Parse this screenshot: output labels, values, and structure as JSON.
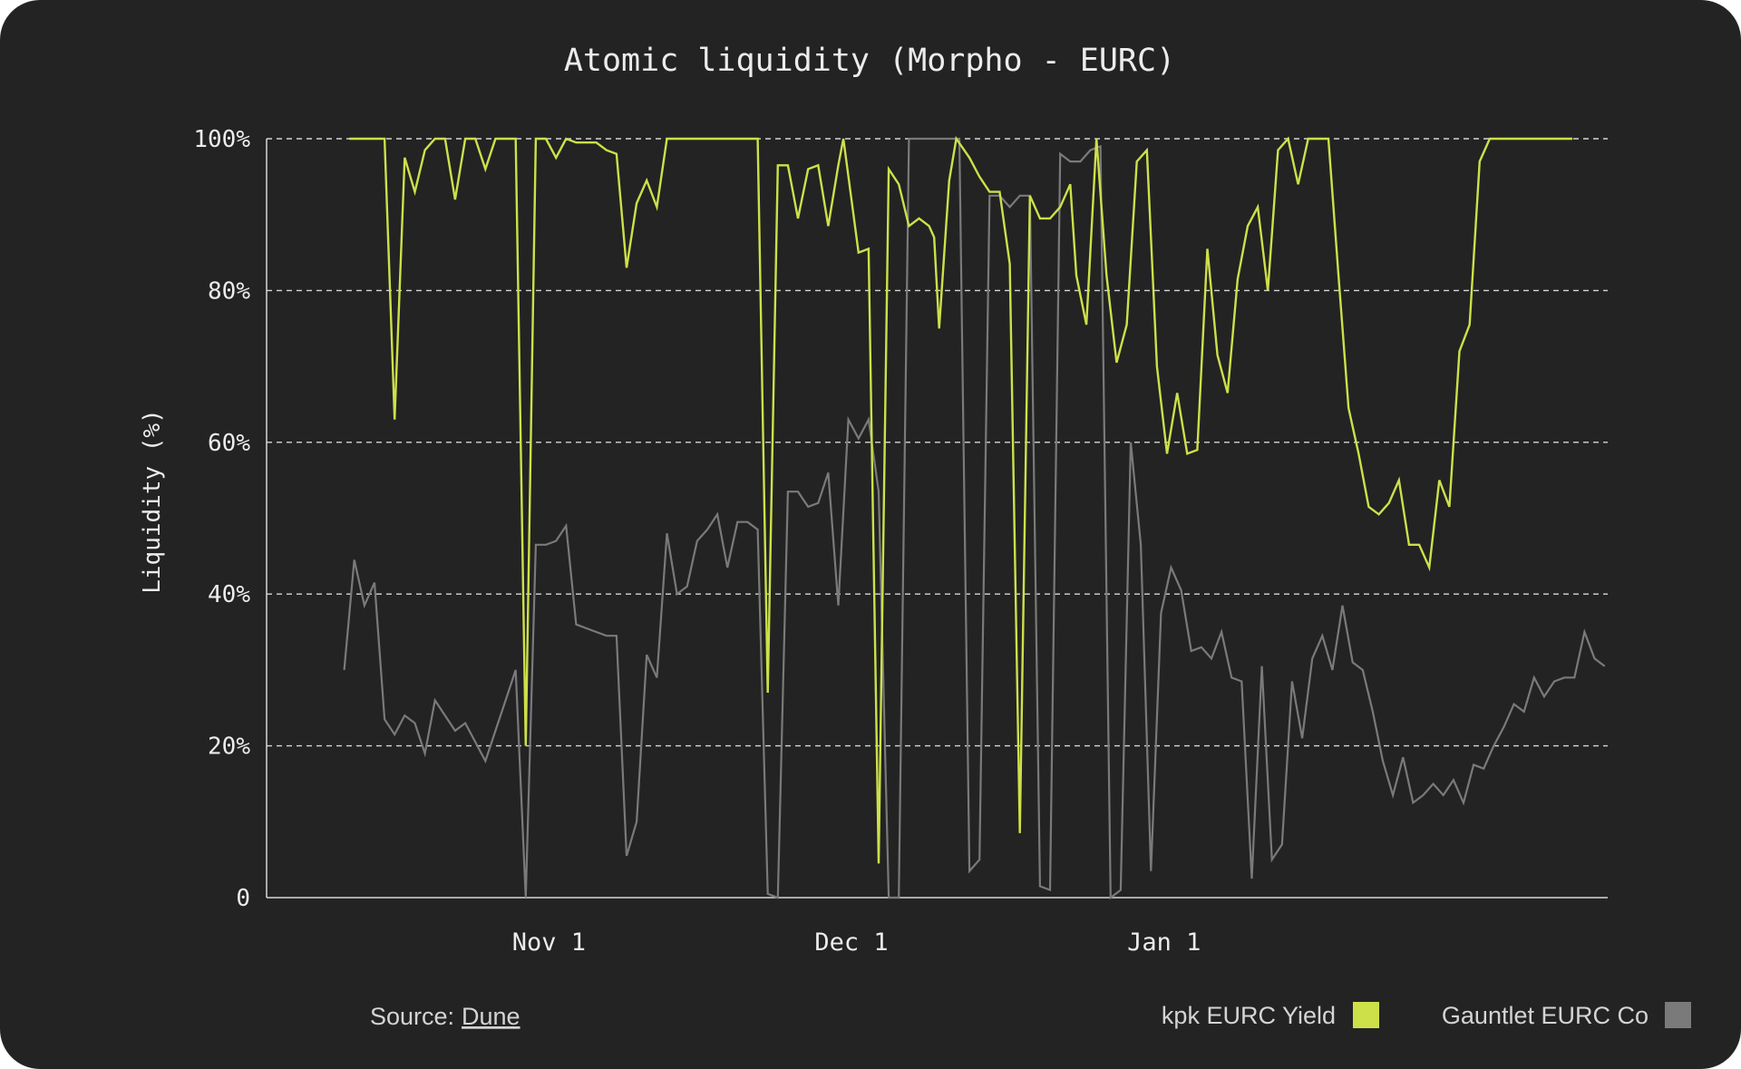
{
  "chart_data": {
    "type": "line",
    "title": "Atomic liquidity (Morpho - EURC)",
    "xlabel": "",
    "ylabel": "Liquidity (%)",
    "ylim": [
      0,
      100
    ],
    "y_ticks": [
      {
        "value": 0,
        "label": "0"
      },
      {
        "value": 20,
        "label": "20%"
      },
      {
        "value": 40,
        "label": "40%"
      },
      {
        "value": 60,
        "label": "60%"
      },
      {
        "value": 80,
        "label": "80%"
      },
      {
        "value": 100,
        "label": "100%"
      }
    ],
    "x_range": [
      -28,
      105
    ],
    "x_unit": "days since Nov 1",
    "x_ticks": [
      {
        "value": 0,
        "label": "Nov 1"
      },
      {
        "value": 30,
        "label": "Dec 1"
      },
      {
        "value": 61,
        "label": "Jan 1"
      }
    ],
    "grid": true,
    "legend": "bottom-right",
    "series": [
      {
        "name": "kpk EURC Yield",
        "color": "#cde04a",
        "points": [
          [
            -19.8,
            100
          ],
          [
            -16.3,
            100
          ],
          [
            -15.3,
            63
          ],
          [
            -14.3,
            97.5
          ],
          [
            -13.3,
            93
          ],
          [
            -12.3,
            98.5
          ],
          [
            -11.3,
            100
          ],
          [
            -10.3,
            100
          ],
          [
            -9.3,
            92
          ],
          [
            -8.3,
            100
          ],
          [
            -7.3,
            100
          ],
          [
            -6.3,
            96
          ],
          [
            -5.3,
            100
          ],
          [
            -4.3,
            100
          ],
          [
            -3.3,
            100
          ],
          [
            -2.3,
            20
          ],
          [
            -1.3,
            100
          ],
          [
            -0.3,
            100
          ],
          [
            0.7,
            97.5
          ],
          [
            1.7,
            100
          ],
          [
            2.7,
            99.5
          ],
          [
            3.7,
            99.5
          ],
          [
            4.7,
            99.5
          ],
          [
            5.7,
            98.5
          ],
          [
            6.7,
            98
          ],
          [
            7.7,
            83
          ],
          [
            8.7,
            91.5
          ],
          [
            9.7,
            94.5
          ],
          [
            10.7,
            91
          ],
          [
            11.7,
            100
          ],
          [
            12.7,
            100
          ],
          [
            13.7,
            100
          ],
          [
            14.7,
            100
          ],
          [
            15.7,
            100
          ],
          [
            16.7,
            100
          ],
          [
            17.7,
            100
          ],
          [
            18.7,
            100
          ],
          [
            19.7,
            100
          ],
          [
            20.7,
            100
          ],
          [
            21.7,
            27
          ],
          [
            22.7,
            96.5
          ],
          [
            23.7,
            96.5
          ],
          [
            24.7,
            89.5
          ],
          [
            25.7,
            96
          ],
          [
            26.7,
            96.5
          ],
          [
            27.7,
            88.5
          ],
          [
            28.7,
            96.5
          ],
          [
            29.2,
            100
          ],
          [
            30.7,
            85
          ],
          [
            31.7,
            85.5
          ],
          [
            32.7,
            4.5
          ],
          [
            33.7,
            96
          ],
          [
            34.7,
            94
          ],
          [
            35.7,
            88.5
          ],
          [
            36.7,
            89.5
          ],
          [
            37.7,
            88.5
          ],
          [
            38.2,
            87
          ],
          [
            38.7,
            75
          ],
          [
            39.7,
            94.5
          ],
          [
            40.4,
            100
          ],
          [
            41.7,
            97.5
          ],
          [
            42.7,
            95
          ],
          [
            43.7,
            93
          ],
          [
            44.7,
            93
          ],
          [
            45.7,
            83.5
          ],
          [
            46.7,
            8.5
          ],
          [
            47.7,
            92.5
          ],
          [
            48.7,
            89.5
          ],
          [
            49.7,
            89.5
          ],
          [
            50.7,
            91
          ],
          [
            51.7,
            94
          ],
          [
            52.3,
            82
          ],
          [
            53.3,
            75.5
          ],
          [
            54.3,
            100
          ],
          [
            55.3,
            82
          ],
          [
            56.3,
            70.5
          ],
          [
            57.3,
            75.5
          ],
          [
            58.3,
            97
          ],
          [
            59.3,
            98.5
          ],
          [
            60.3,
            70
          ],
          [
            61.3,
            58.5
          ],
          [
            62.3,
            66.5
          ],
          [
            63.3,
            58.5
          ],
          [
            64.3,
            59
          ],
          [
            65.3,
            85.5
          ],
          [
            66.3,
            71.5
          ],
          [
            67.3,
            66.5
          ],
          [
            68.3,
            81.5
          ],
          [
            69.3,
            88.5
          ],
          [
            70.3,
            91
          ],
          [
            71.3,
            80
          ],
          [
            72.3,
            98.5
          ],
          [
            73.3,
            100
          ],
          [
            74.3,
            94
          ],
          [
            75.3,
            100
          ],
          [
            76.3,
            100
          ],
          [
            77.3,
            100
          ],
          [
            78.3,
            82
          ],
          [
            79.3,
            64.5
          ],
          [
            80.3,
            58.5
          ],
          [
            81.3,
            51.5
          ],
          [
            82.3,
            50.5
          ],
          [
            83.3,
            52
          ],
          [
            84.3,
            55
          ],
          [
            85.3,
            46.5
          ],
          [
            86.3,
            46.5
          ],
          [
            87.3,
            43.5
          ],
          [
            88.3,
            55
          ],
          [
            89.3,
            51.5
          ],
          [
            90.3,
            72
          ],
          [
            91.3,
            75.5
          ],
          [
            92.3,
            97
          ],
          [
            93.3,
            100
          ],
          [
            96.3,
            100
          ],
          [
            101.5,
            100
          ]
        ]
      },
      {
        "name": "Gauntlet EURC Co",
        "color": "#7a7a7a",
        "points": [
          [
            -20.3,
            30
          ],
          [
            -19.3,
            44.5
          ],
          [
            -18.3,
            38.5
          ],
          [
            -17.3,
            41.5
          ],
          [
            -16.3,
            23.5
          ],
          [
            -15.3,
            21.5
          ],
          [
            -14.3,
            24
          ],
          [
            -13.3,
            23
          ],
          [
            -12.3,
            19
          ],
          [
            -11.3,
            26
          ],
          [
            -10.3,
            24
          ],
          [
            -9.3,
            22
          ],
          [
            -8.3,
            23
          ],
          [
            -7.3,
            20.5
          ],
          [
            -6.3,
            18
          ],
          [
            -5.3,
            22
          ],
          [
            -4.3,
            26
          ],
          [
            -3.3,
            30
          ],
          [
            -2.3,
            0
          ],
          [
            -1.3,
            46.5
          ],
          [
            -0.3,
            46.5
          ],
          [
            0.7,
            47
          ],
          [
            1.7,
            49
          ],
          [
            2.7,
            36
          ],
          [
            3.7,
            35.5
          ],
          [
            4.7,
            35
          ],
          [
            5.7,
            34.5
          ],
          [
            6.7,
            34.5
          ],
          [
            7.7,
            5.5
          ],
          [
            8.7,
            10
          ],
          [
            9.7,
            32
          ],
          [
            10.7,
            29
          ],
          [
            11.7,
            48
          ],
          [
            12.7,
            40
          ],
          [
            13.7,
            41
          ],
          [
            14.7,
            47
          ],
          [
            15.7,
            48.5
          ],
          [
            16.7,
            50.5
          ],
          [
            17.7,
            43.5
          ],
          [
            18.7,
            49.5
          ],
          [
            19.7,
            49.5
          ],
          [
            20.7,
            48.5
          ],
          [
            21.7,
            0.5
          ],
          [
            22.7,
            0
          ],
          [
            23.7,
            53.5
          ],
          [
            24.7,
            53.5
          ],
          [
            25.7,
            51.5
          ],
          [
            26.7,
            52
          ],
          [
            27.7,
            56
          ],
          [
            28.7,
            38.5
          ],
          [
            29.7,
            63
          ],
          [
            30.7,
            60.5
          ],
          [
            31.7,
            63
          ],
          [
            32.7,
            53.5
          ],
          [
            33.7,
            0
          ],
          [
            34.7,
            0
          ],
          [
            35.7,
            100
          ],
          [
            40.7,
            100
          ],
          [
            41.7,
            3.5
          ],
          [
            42.7,
            5
          ],
          [
            43.7,
            92.5
          ],
          [
            44.7,
            92.5
          ],
          [
            45.7,
            91
          ],
          [
            46.7,
            92.5
          ],
          [
            47.7,
            92.5
          ],
          [
            48.7,
            1.5
          ],
          [
            49.7,
            1
          ],
          [
            50.7,
            98
          ],
          [
            51.7,
            97
          ],
          [
            52.7,
            97
          ],
          [
            53.7,
            98.5
          ],
          [
            54.7,
            99
          ],
          [
            55.7,
            0
          ],
          [
            56.7,
            1
          ],
          [
            57.7,
            60
          ],
          [
            58.7,
            46.5
          ],
          [
            59.7,
            3.5
          ],
          [
            60.7,
            37.5
          ],
          [
            61.7,
            43.5
          ],
          [
            62.7,
            40.5
          ],
          [
            63.7,
            32.5
          ],
          [
            64.7,
            33
          ],
          [
            65.7,
            31.5
          ],
          [
            66.7,
            35
          ],
          [
            67.7,
            29
          ],
          [
            68.7,
            28.5
          ],
          [
            69.7,
            2.5
          ],
          [
            70.7,
            30.5
          ],
          [
            71.7,
            5
          ],
          [
            72.7,
            7
          ],
          [
            73.7,
            28.5
          ],
          [
            74.7,
            21
          ],
          [
            75.7,
            31.5
          ],
          [
            76.7,
            34.5
          ],
          [
            77.7,
            30
          ],
          [
            78.7,
            38.5
          ],
          [
            79.7,
            31
          ],
          [
            80.7,
            30
          ],
          [
            81.7,
            24.5
          ],
          [
            82.7,
            18
          ],
          [
            83.7,
            13.5
          ],
          [
            84.7,
            18.5
          ],
          [
            85.7,
            12.5
          ],
          [
            86.7,
            13.5
          ],
          [
            87.7,
            15
          ],
          [
            88.7,
            13.5
          ],
          [
            89.7,
            15.5
          ],
          [
            90.7,
            12.5
          ],
          [
            91.7,
            17.5
          ],
          [
            92.7,
            17
          ],
          [
            93.7,
            20
          ],
          [
            94.7,
            22.5
          ],
          [
            95.7,
            25.5
          ],
          [
            96.7,
            24.5
          ],
          [
            97.7,
            29
          ],
          [
            98.7,
            26.5
          ],
          [
            99.7,
            28.5
          ],
          [
            100.7,
            29
          ],
          [
            101.7,
            29
          ],
          [
            102.7,
            35
          ],
          [
            103.7,
            31.5
          ],
          [
            104.7,
            30.5
          ]
        ]
      }
    ]
  },
  "footer": {
    "source_label": "Source:",
    "source_link": "Dune"
  }
}
